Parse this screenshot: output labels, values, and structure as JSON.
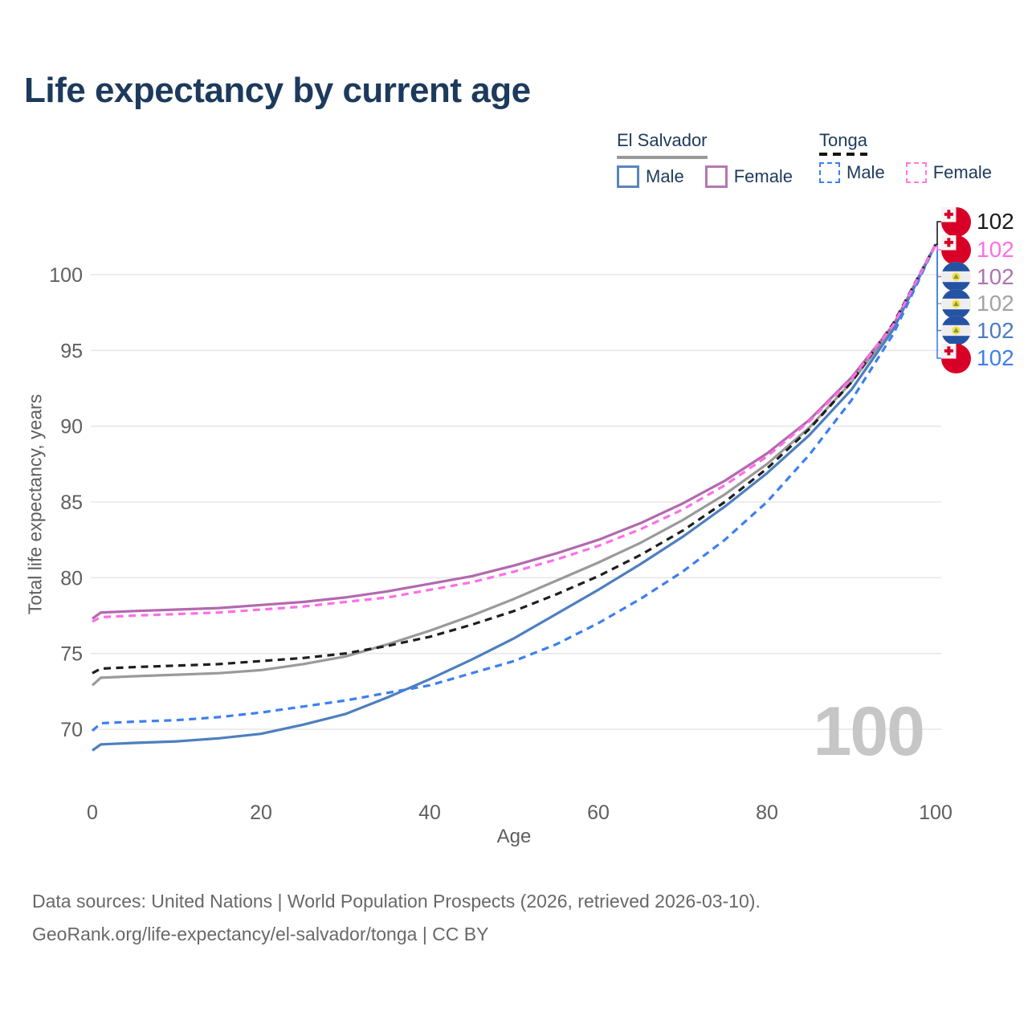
{
  "title": "Life expectancy by current age",
  "legend": {
    "groups": [
      {
        "country": "El Salvador",
        "line_style": "solid",
        "underline_color": "#9a9a9a",
        "items": [
          {
            "label": "Male",
            "color": "#5b85bd",
            "dashed": false
          },
          {
            "label": "Female",
            "color": "#b478b2",
            "dashed": false
          }
        ]
      },
      {
        "country": "Tonga",
        "line_style": "dashed",
        "underline_color": "#141414",
        "items": [
          {
            "label": "Male",
            "color": "#3d7ff0",
            "dashed": true
          },
          {
            "label": "Female",
            "color": "#ff7ae4",
            "dashed": true
          }
        ]
      }
    ]
  },
  "chart_data": {
    "type": "line",
    "title": "Life expectancy by current age",
    "xlabel": "Age",
    "ylabel": "Total life expectancy, years",
    "x_ticks": [
      0,
      20,
      40,
      60,
      80,
      100
    ],
    "y_ticks": [
      70,
      75,
      80,
      85,
      90,
      95,
      100
    ],
    "xlim": [
      0,
      100
    ],
    "ylim": [
      68,
      103
    ],
    "grid": "horizontal",
    "legend_position": "top-right",
    "x": [
      0,
      1,
      5,
      10,
      15,
      20,
      25,
      30,
      35,
      40,
      45,
      50,
      55,
      60,
      65,
      70,
      75,
      80,
      85,
      90,
      95,
      100
    ],
    "series": [
      {
        "name": "El Salvador Male",
        "country": "El Salvador",
        "sex": "Male",
        "color": "#4e7fbe",
        "dashed": false,
        "values": [
          68.6,
          69.0,
          69.1,
          69.2,
          69.4,
          69.7,
          70.3,
          71.0,
          72.1,
          73.3,
          74.6,
          76.0,
          77.6,
          79.2,
          80.9,
          82.7,
          84.7,
          86.9,
          89.4,
          92.4,
          96.4,
          102
        ]
      },
      {
        "name": "El Salvador Female",
        "country": "El Salvador",
        "sex": "Female",
        "color": "#b269ae",
        "dashed": false,
        "values": [
          77.3,
          77.7,
          77.8,
          77.9,
          78.0,
          78.2,
          78.4,
          78.7,
          79.1,
          79.6,
          80.1,
          80.8,
          81.6,
          82.5,
          83.6,
          84.9,
          86.4,
          88.2,
          90.4,
          93.2,
          96.7,
          102
        ]
      },
      {
        "name": "El Salvador",
        "country": "El Salvador",
        "sex": "Both",
        "color": "#9a9a9a",
        "dashed": false,
        "values": [
          72.9,
          73.4,
          73.5,
          73.6,
          73.7,
          73.9,
          74.3,
          74.8,
          75.6,
          76.5,
          77.5,
          78.6,
          79.8,
          81.0,
          82.3,
          83.8,
          85.5,
          87.5,
          89.9,
          92.9,
          96.5,
          102
        ]
      },
      {
        "name": "Tonga Male",
        "country": "Tonga",
        "sex": "Male",
        "color": "#3d7ff0",
        "dashed": true,
        "values": [
          69.9,
          70.4,
          70.5,
          70.6,
          70.8,
          71.1,
          71.5,
          71.9,
          72.4,
          72.9,
          73.7,
          74.5,
          75.6,
          77.0,
          78.6,
          80.4,
          82.5,
          85.0,
          88.1,
          91.7,
          96.1,
          102
        ]
      },
      {
        "name": "Tonga Female",
        "country": "Tonga",
        "sex": "Female",
        "color": "#ff6ee6",
        "dashed": true,
        "values": [
          77.1,
          77.4,
          77.5,
          77.6,
          77.7,
          77.9,
          78.1,
          78.4,
          78.7,
          79.2,
          79.7,
          80.4,
          81.2,
          82.1,
          83.2,
          84.5,
          86.1,
          88.0,
          90.3,
          93.1,
          96.7,
          102
        ]
      },
      {
        "name": "Tonga",
        "country": "Tonga",
        "sex": "Both",
        "color": "#1f1f1f",
        "dashed": true,
        "values": [
          73.7,
          74.0,
          74.1,
          74.2,
          74.3,
          74.5,
          74.7,
          75.0,
          75.5,
          76.1,
          76.9,
          77.8,
          78.9,
          80.1,
          81.5,
          83.1,
          85.0,
          87.2,
          89.8,
          92.9,
          96.8,
          102
        ]
      }
    ]
  },
  "end_labels": [
    {
      "flag": "tonga",
      "value": "102",
      "color": "#1a1a1a"
    },
    {
      "flag": "tonga",
      "value": "102",
      "color": "#ff6ee6"
    },
    {
      "flag": "el-salvador",
      "value": "102",
      "color": "#b173ae"
    },
    {
      "flag": "el-salvador",
      "value": "102",
      "color": "#a3a3a3"
    },
    {
      "flag": "el-salvador",
      "value": "102",
      "color": "#4a7ebc"
    },
    {
      "flag": "tonga",
      "value": "102",
      "color": "#3f7ef0"
    }
  ],
  "age_watermark": "100",
  "axis": {
    "x_label": "Age",
    "y_label": "Total life expectancy, years"
  },
  "footer": {
    "line1": "Data sources: United Nations | World Population Prospects (2026, retrieved 2026-03-10).",
    "line2": "GeoRank.org/life-expectancy/el-salvador/tonga | CC BY"
  }
}
